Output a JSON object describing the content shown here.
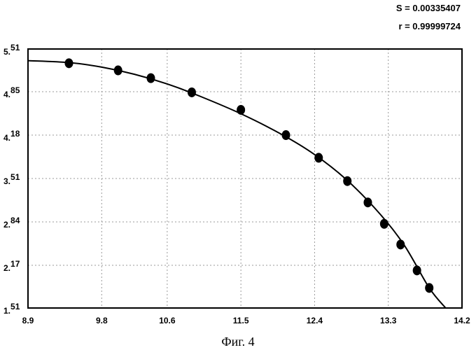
{
  "stats": {
    "s_text": "S = 0.00335407",
    "r_text": "r = 0.99999724"
  },
  "caption": "Фиг. 4",
  "chart_data": {
    "type": "scatter",
    "title": "",
    "xlabel": "",
    "ylabel": "",
    "xlim": [
      8.9,
      14.2
    ],
    "ylim": [
      1.51,
      5.51
    ],
    "x_ticks": [
      8.9,
      9.8,
      10.6,
      11.5,
      12.4,
      13.3,
      14.2
    ],
    "x_tick_labels": [
      "8.9",
      "9.8",
      "10.6",
      "11.5",
      "12.4",
      "13.3",
      "14.2"
    ],
    "y_ticks": [
      1.51,
      2.17,
      2.84,
      3.51,
      4.18,
      4.85,
      5.51
    ],
    "y_tick_labels": [
      {
        "main": "1.",
        "sup": "51"
      },
      {
        "main": "2.",
        "sup": "17"
      },
      {
        "main": "2.",
        "sup": "84"
      },
      {
        "main": "3.",
        "sup": "51"
      },
      {
        "main": "4.",
        "sup": "18"
      },
      {
        "main": "4.",
        "sup": "85"
      },
      {
        "main": "5.",
        "sup": "51"
      }
    ],
    "grid": true,
    "series": [
      {
        "kind": "points",
        "x": [
          9.4,
          10.0,
          10.4,
          10.9,
          11.5,
          12.05,
          12.45,
          12.8,
          13.05,
          13.25,
          13.45,
          13.65,
          13.8
        ],
        "y": [
          5.29,
          5.18,
          5.06,
          4.84,
          4.57,
          4.18,
          3.83,
          3.47,
          3.14,
          2.81,
          2.49,
          2.09,
          1.82
        ]
      },
      {
        "kind": "fit-curve",
        "x": [
          8.9,
          9.4,
          9.8,
          10.2,
          10.6,
          11.0,
          11.5,
          12.0,
          12.4,
          12.8,
          13.2,
          13.5,
          13.8,
          14.0
        ],
        "y": [
          5.33,
          5.3,
          5.23,
          5.12,
          4.97,
          4.78,
          4.51,
          4.19,
          3.88,
          3.48,
          2.96,
          2.47,
          1.82,
          1.51
        ]
      }
    ]
  }
}
